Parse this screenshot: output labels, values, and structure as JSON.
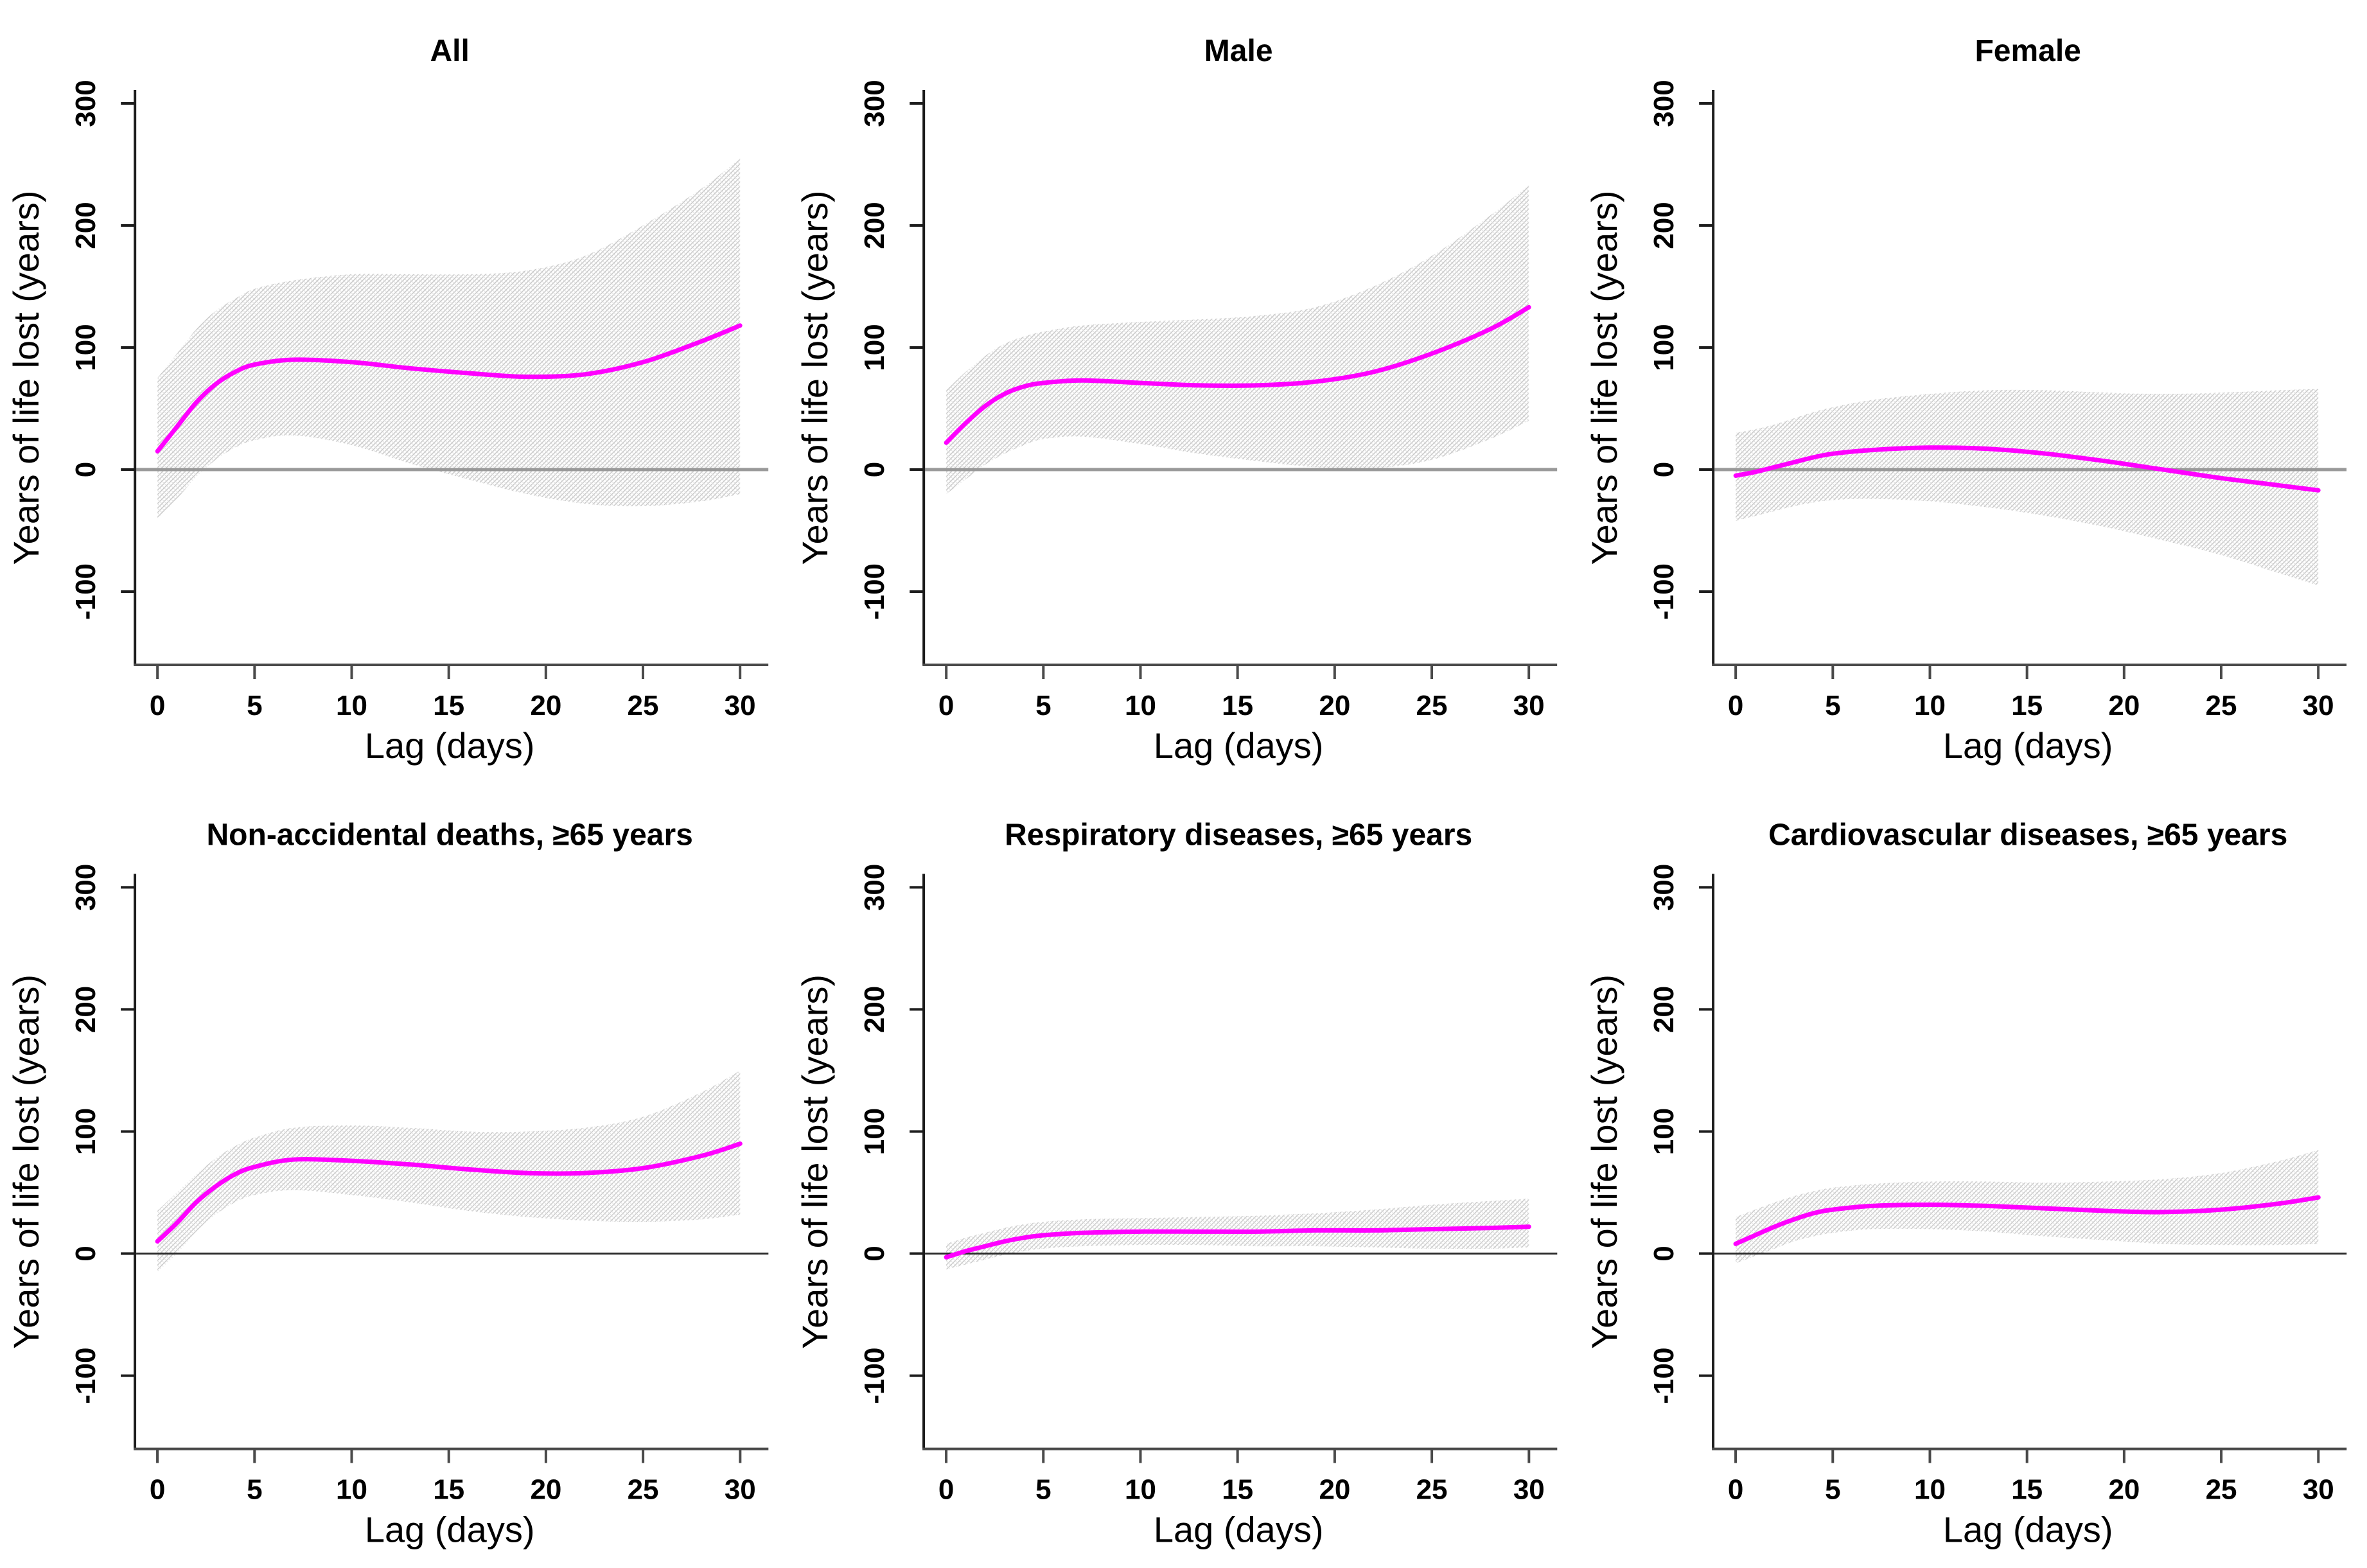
{
  "figure": {
    "background": "#ffffff",
    "line_color": "#ff00ff",
    "hatch_color": "#c6c6c6",
    "hatch_cross_color": "#dedede",
    "axis_color": "#3a3a3a",
    "text_color": "#000000"
  },
  "chart_data": [
    {
      "type": "line",
      "title": "All",
      "xlabel": "Lag (days)",
      "ylabel": "Years of life lost (years)",
      "xlim": [
        0,
        30
      ],
      "ylim": [
        -160,
        311
      ],
      "x_ticks": [
        0,
        5,
        10,
        15,
        20,
        25,
        30
      ],
      "y_ticks": [
        -100,
        0,
        100,
        200,
        300
      ],
      "grid": false,
      "zero_line": {
        "color": "#999999",
        "width": 5
      },
      "x": [
        0,
        1,
        2,
        3,
        4,
        5,
        7,
        10,
        13,
        16,
        19,
        22,
        25,
        28,
        30
      ],
      "series": [
        {
          "name": "estimate",
          "color": "#ff00ff",
          "values": [
            15,
            35,
            55,
            70,
            80,
            86,
            90,
            88,
            83,
            79,
            76,
            78,
            88,
            105,
            118
          ]
        },
        {
          "name": "ci_upper",
          "values": [
            75,
            95,
            115,
            130,
            140,
            148,
            155,
            160,
            160,
            160,
            163,
            175,
            200,
            230,
            255
          ]
        },
        {
          "name": "ci_lower",
          "values": [
            -40,
            -24,
            -6,
            8,
            18,
            24,
            28,
            20,
            5,
            -8,
            -20,
            -28,
            -30,
            -26,
            -20
          ]
        }
      ]
    },
    {
      "type": "line",
      "title": "Male",
      "xlabel": "Lag (days)",
      "ylabel": "Years of life lost (years)",
      "xlim": [
        0,
        30
      ],
      "ylim": [
        -160,
        311
      ],
      "x_ticks": [
        0,
        5,
        10,
        15,
        20,
        25,
        30
      ],
      "y_ticks": [
        -100,
        0,
        100,
        200,
        300
      ],
      "grid": false,
      "zero_line": {
        "color": "#999999",
        "width": 5
      },
      "x": [
        0,
        1,
        2,
        3,
        4,
        5,
        7,
        10,
        13,
        16,
        19,
        22,
        25,
        28,
        30
      ],
      "series": [
        {
          "name": "estimate",
          "color": "#ff00ff",
          "values": [
            22,
            38,
            52,
            62,
            68,
            71,
            73,
            71,
            69,
            69,
            72,
            80,
            95,
            115,
            133
          ]
        },
        {
          "name": "ci_upper",
          "values": [
            65,
            80,
            93,
            103,
            109,
            113,
            118,
            121,
            123,
            126,
            133,
            150,
            175,
            208,
            233
          ]
        },
        {
          "name": "ci_lower",
          "values": [
            -20,
            -8,
            4,
            13,
            20,
            25,
            27,
            21,
            13,
            7,
            2,
            1,
            8,
            25,
            40
          ]
        }
      ]
    },
    {
      "type": "line",
      "title": "Female",
      "xlabel": "Lag (days)",
      "ylabel": "Years of life lost (years)",
      "xlim": [
        0,
        30
      ],
      "ylim": [
        -160,
        311
      ],
      "x_ticks": [
        0,
        5,
        10,
        15,
        20,
        25,
        30
      ],
      "y_ticks": [
        -100,
        0,
        100,
        200,
        300
      ],
      "grid": false,
      "zero_line": {
        "color": "#999999",
        "width": 5
      },
      "x": [
        0,
        1,
        2,
        3,
        4,
        5,
        7,
        10,
        13,
        16,
        19,
        22,
        25,
        28,
        30
      ],
      "series": [
        {
          "name": "estimate",
          "color": "#ff00ff",
          "values": [
            -5,
            -2,
            2,
            6,
            10,
            13,
            16,
            18,
            17,
            13,
            7,
            0,
            -7,
            -13,
            -17
          ]
        },
        {
          "name": "ci_upper",
          "values": [
            30,
            33,
            37,
            42,
            47,
            51,
            57,
            62,
            65,
            65,
            63,
            62,
            63,
            65,
            66
          ]
        },
        {
          "name": "ci_lower",
          "values": [
            -42,
            -38,
            -34,
            -30,
            -27,
            -25,
            -24,
            -26,
            -31,
            -38,
            -47,
            -58,
            -70,
            -85,
            -95
          ]
        }
      ]
    },
    {
      "type": "line",
      "title": "Non-accidental deaths, ≥65 years",
      "xlabel": "Lag (days)",
      "ylabel": "Years of life lost (years)",
      "xlim": [
        0,
        30
      ],
      "ylim": [
        -160,
        311
      ],
      "x_ticks": [
        0,
        5,
        10,
        15,
        20,
        25,
        30
      ],
      "y_ticks": [
        -100,
        0,
        100,
        200,
        300
      ],
      "grid": false,
      "zero_line": {
        "color": "#2b2b2b",
        "width": 3
      },
      "x": [
        0,
        1,
        2,
        3,
        4,
        5,
        7,
        10,
        13,
        16,
        19,
        22,
        25,
        28,
        30
      ],
      "series": [
        {
          "name": "estimate",
          "color": "#ff00ff",
          "values": [
            10,
            25,
            42,
            55,
            65,
            71,
            77,
            76,
            73,
            69,
            66,
            66,
            70,
            80,
            90
          ]
        },
        {
          "name": "ci_upper",
          "values": [
            35,
            50,
            65,
            78,
            88,
            95,
            103,
            105,
            103,
            100,
            100,
            103,
            112,
            132,
            150
          ]
        },
        {
          "name": "ci_lower",
          "values": [
            -15,
            0,
            18,
            32,
            42,
            48,
            52,
            48,
            42,
            35,
            30,
            27,
            26,
            28,
            32
          ]
        }
      ]
    },
    {
      "type": "line",
      "title": "Respiratory diseases, ≥65 years",
      "xlabel": "Lag (days)",
      "ylabel": "Years of life lost (years)",
      "xlim": [
        0,
        30
      ],
      "ylim": [
        -160,
        311
      ],
      "x_ticks": [
        0,
        5,
        10,
        15,
        20,
        25,
        30
      ],
      "y_ticks": [
        -100,
        0,
        100,
        200,
        300
      ],
      "grid": false,
      "zero_line": {
        "color": "#2b2b2b",
        "width": 3
      },
      "x": [
        0,
        1,
        2,
        3,
        4,
        5,
        7,
        10,
        13,
        16,
        19,
        22,
        25,
        28,
        30
      ],
      "series": [
        {
          "name": "estimate",
          "color": "#ff00ff",
          "values": [
            -3,
            2,
            6,
            10,
            13,
            15,
            17,
            18,
            18,
            18,
            19,
            19,
            20,
            21,
            22
          ]
        },
        {
          "name": "ci_upper",
          "values": [
            8,
            13,
            17,
            21,
            24,
            26,
            28,
            29,
            30,
            31,
            33,
            36,
            40,
            43,
            45
          ]
        },
        {
          "name": "ci_lower",
          "values": [
            -13,
            -9,
            -5,
            -1,
            2,
            4,
            6,
            7,
            7,
            6,
            6,
            5,
            4,
            4,
            5
          ]
        }
      ]
    },
    {
      "type": "line",
      "title": "Cardiovascular diseases, ≥65 years",
      "xlabel": "Lag (days)",
      "ylabel": "Years of life lost (years)",
      "xlim": [
        0,
        30
      ],
      "ylim": [
        -160,
        311
      ],
      "x_ticks": [
        0,
        5,
        10,
        15,
        20,
        25,
        30
      ],
      "y_ticks": [
        -100,
        0,
        100,
        200,
        300
      ],
      "grid": false,
      "zero_line": {
        "color": "#2b2b2b",
        "width": 3
      },
      "x": [
        0,
        1,
        2,
        3,
        4,
        5,
        7,
        10,
        13,
        16,
        19,
        22,
        25,
        28,
        30
      ],
      "series": [
        {
          "name": "estimate",
          "color": "#ff00ff",
          "values": [
            8,
            15,
            22,
            28,
            33,
            36,
            39,
            40,
            39,
            37,
            35,
            34,
            36,
            41,
            46
          ]
        },
        {
          "name": "ci_upper",
          "values": [
            30,
            36,
            42,
            47,
            51,
            54,
            57,
            59,
            59,
            58,
            59,
            61,
            66,
            76,
            85
          ]
        },
        {
          "name": "ci_lower",
          "values": [
            -8,
            -2,
            4,
            10,
            14,
            17,
            20,
            20,
            18,
            14,
            11,
            8,
            7,
            7,
            8
          ]
        }
      ]
    }
  ]
}
